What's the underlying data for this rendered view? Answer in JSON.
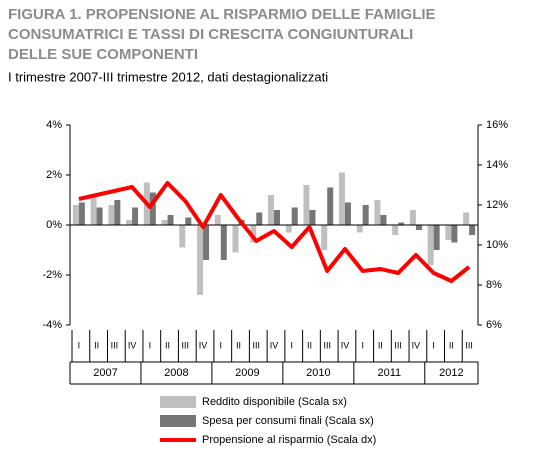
{
  "chart_data": {
    "type": "bar_line",
    "title_lines": [
      "FIGURA 1. PROPENSIONE AL RISPARMIO DELLE FAMIGLIE",
      "CONSUMATRICI E TASSI DI CRESCITA CONGIUNTURALI",
      "DELLE SUE COMPONENTI"
    ],
    "subtitle": "I trimestre 2007-III trimestre 2012, dati destagionalizzati",
    "categories": [
      "I",
      "II",
      "III",
      "IV",
      "I",
      "II",
      "III",
      "IV",
      "I",
      "II",
      "III",
      "IV",
      "I",
      "II",
      "III",
      "IV",
      "I",
      "II",
      "III",
      "IV",
      "I",
      "II",
      "III"
    ],
    "years": [
      "2007",
      "2008",
      "2009",
      "2010",
      "2011",
      "2012"
    ],
    "series": [
      {
        "name": "Reddito disponibile (Scala sx)",
        "color": "#bfbfbf",
        "axis": "y",
        "values": [
          0.8,
          1.2,
          0.8,
          0.2,
          1.7,
          0.2,
          -0.9,
          -2.8,
          0.4,
          -1.1,
          -0.7,
          1.2,
          -0.3,
          1.6,
          -1.0,
          2.1,
          -0.3,
          1.0,
          -0.4,
          0.6,
          -1.6,
          -0.6,
          0.5
        ]
      },
      {
        "name": "Spesa per consumi finali (Scala sx)",
        "color": "#767676",
        "axis": "y",
        "values": [
          0.9,
          0.7,
          1.0,
          0.7,
          1.3,
          0.4,
          0.3,
          -1.4,
          -1.4,
          0.2,
          0.5,
          0.6,
          0.7,
          0.6,
          1.5,
          0.9,
          0.8,
          0.4,
          0.1,
          -0.2,
          -1.0,
          -0.7,
          -0.4
        ]
      },
      {
        "name": "Propensione al risparmio (Scala dx)",
        "color": "#ff0000",
        "axis": "y2",
        "values": [
          12.3,
          12.5,
          12.7,
          12.9,
          11.9,
          13.1,
          12.2,
          10.9,
          12.5,
          11.3,
          10.2,
          10.7,
          9.9,
          10.9,
          8.7,
          9.8,
          8.7,
          8.8,
          8.6,
          9.5,
          8.6,
          8.2,
          8.9
        ]
      }
    ],
    "ylim": [
      -4,
      4
    ],
    "yticks": [
      {
        "value": -4,
        "label": "-4%"
      },
      {
        "value": -2,
        "label": "-2%"
      },
      {
        "value": 0,
        "label": "0%"
      },
      {
        "value": 2,
        "label": "2%"
      },
      {
        "value": 4,
        "label": "4%"
      }
    ],
    "y2lim": [
      6,
      16
    ],
    "y2ticks": [
      {
        "value": 6,
        "label": "6%"
      },
      {
        "value": 8,
        "label": "8%"
      },
      {
        "value": 10,
        "label": "10%"
      },
      {
        "value": 12,
        "label": "12%"
      },
      {
        "value": 14,
        "label": "14%"
      },
      {
        "value": 16,
        "label": "16%"
      }
    ]
  }
}
